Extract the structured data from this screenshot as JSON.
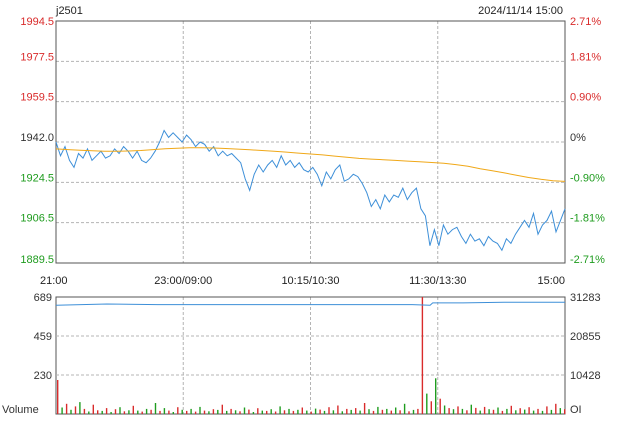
{
  "header": {
    "symbol": "j2501",
    "datetime": "2024/11/14 15:00"
  },
  "colors": {
    "up": "#d92b2b",
    "down": "#1f9c1f",
    "neutral": "#333333",
    "price_line": "#3d8fd8",
    "avg_line": "#f0a818",
    "oi_line": "#3d8fd8",
    "grid": "#b4b4b4",
    "frame": "#555555"
  },
  "chart_data": [
    {
      "type": "line",
      "ref_price": 1942.0,
      "ylim": [
        1889.5,
        1994.5
      ],
      "price_ticks": [
        {
          "label": "1994.5",
          "pct": "2.71%",
          "dir": "up"
        },
        {
          "label": "1977.5",
          "pct": "1.81%",
          "dir": "up"
        },
        {
          "label": "1959.5",
          "pct": "0.90%",
          "dir": "up"
        },
        {
          "label": "1942.0",
          "pct": "0%",
          "dir": "flat"
        },
        {
          "label": "1924.5",
          "pct": "-0.90%",
          "dir": "down"
        },
        {
          "label": "1906.5",
          "pct": "-1.81%",
          "dir": "down"
        },
        {
          "label": "1889.5",
          "pct": "-2.71%",
          "dir": "down"
        }
      ],
      "time_labels": [
        "21:00",
        "23:00/09:00",
        "10:15/10:30",
        "11:30/13:30",
        "15:00"
      ],
      "series": [
        {
          "key": "price",
          "values": [
            1942,
            1936,
            1940,
            1934,
            1931,
            1937,
            1935,
            1939,
            1934,
            1936,
            1938,
            1935,
            1936,
            1939,
            1937,
            1940,
            1938,
            1935,
            1938,
            1934,
            1933,
            1935,
            1938,
            1942,
            1947,
            1944,
            1946,
            1944,
            1942,
            1945,
            1943,
            1940,
            1942,
            1941,
            1938,
            1940,
            1936,
            1938,
            1936,
            1937,
            1935,
            1933,
            1926,
            1921,
            1928,
            1932,
            1929,
            1932,
            1934,
            1931,
            1936,
            1932,
            1934,
            1931,
            1933,
            1930,
            1929,
            1931,
            1928,
            1923,
            1929,
            1926,
            1930,
            1932,
            1925,
            1926,
            1928,
            1927,
            1924,
            1920,
            1914,
            1917,
            1913,
            1919,
            1916,
            1919,
            1918,
            1922,
            1917,
            1920,
            1922,
            1913,
            1910,
            1897,
            1904,
            1897,
            1906,
            1902,
            1904,
            1905,
            1901,
            1898,
            1902,
            1899,
            1900,
            1897,
            1901,
            1899,
            1898,
            1895,
            1900,
            1898,
            1902,
            1905,
            1908,
            1905,
            1911,
            1902,
            1906,
            1908,
            1912,
            1903,
            1908,
            1913
          ]
        },
        {
          "key": "avg",
          "values": [
            1939,
            1938.7,
            1938.4,
            1938.2,
            1938,
            1938,
            1938.1,
            1938.3,
            1938.7,
            1939.1,
            1939.3,
            1939.5,
            1939.5,
            1939.4,
            1939.2,
            1938.9,
            1938.6,
            1938.3,
            1938,
            1937.6,
            1937.2,
            1936.8,
            1936.4,
            1935.9,
            1935.4,
            1934.9,
            1934.6,
            1934.3,
            1934,
            1933.7,
            1933.4,
            1933.1,
            1932.8,
            1932.2,
            1931.5,
            1930.4,
            1929.5,
            1928.6,
            1927.6,
            1926.6,
            1925.8,
            1925.2,
            1924.9
          ]
        }
      ]
    },
    {
      "type": "bar",
      "ylabel": "Volume",
      "y2label": "OI",
      "volume_ticks": [
        "689",
        "459",
        "230"
      ],
      "oi_ticks": [
        "31283",
        "20855",
        "10428"
      ],
      "volume_max": 689,
      "bars": [
        {
          "v": 200,
          "c": "up"
        },
        {
          "v": 38,
          "c": "down"
        },
        {
          "v": 60,
          "c": "up"
        },
        {
          "v": 25,
          "c": "down"
        },
        {
          "v": 45,
          "c": "up"
        },
        {
          "v": 70,
          "c": "down"
        },
        {
          "v": 30,
          "c": "up"
        },
        {
          "v": 15,
          "c": "down"
        },
        {
          "v": 55,
          "c": "up"
        },
        {
          "v": 22,
          "c": "up"
        },
        {
          "v": 18,
          "c": "down"
        },
        {
          "v": 35,
          "c": "up"
        },
        {
          "v": 12,
          "c": "down"
        },
        {
          "v": 28,
          "c": "up"
        },
        {
          "v": 40,
          "c": "down"
        },
        {
          "v": 16,
          "c": "up"
        },
        {
          "v": 22,
          "c": "down"
        },
        {
          "v": 48,
          "c": "up"
        },
        {
          "v": 20,
          "c": "down"
        },
        {
          "v": 14,
          "c": "up"
        },
        {
          "v": 30,
          "c": "down"
        },
        {
          "v": 25,
          "c": "up"
        },
        {
          "v": 65,
          "c": "down"
        },
        {
          "v": 18,
          "c": "up"
        },
        {
          "v": 35,
          "c": "down"
        },
        {
          "v": 20,
          "c": "up"
        },
        {
          "v": 12,
          "c": "down"
        },
        {
          "v": 40,
          "c": "up"
        },
        {
          "v": 25,
          "c": "down"
        },
        {
          "v": 18,
          "c": "up"
        },
        {
          "v": 30,
          "c": "down"
        },
        {
          "v": 14,
          "c": "up"
        },
        {
          "v": 42,
          "c": "down"
        },
        {
          "v": 20,
          "c": "up"
        },
        {
          "v": 16,
          "c": "down"
        },
        {
          "v": 28,
          "c": "up"
        },
        {
          "v": 24,
          "c": "down"
        },
        {
          "v": 55,
          "c": "up"
        },
        {
          "v": 18,
          "c": "down"
        },
        {
          "v": 30,
          "c": "up"
        },
        {
          "v": 22,
          "c": "down"
        },
        {
          "v": 16,
          "c": "up"
        },
        {
          "v": 38,
          "c": "down"
        },
        {
          "v": 26,
          "c": "up"
        },
        {
          "v": 12,
          "c": "down"
        },
        {
          "v": 34,
          "c": "up"
        },
        {
          "v": 20,
          "c": "down"
        },
        {
          "v": 18,
          "c": "up"
        },
        {
          "v": 28,
          "c": "down"
        },
        {
          "v": 15,
          "c": "up"
        },
        {
          "v": 45,
          "c": "down"
        },
        {
          "v": 22,
          "c": "up"
        },
        {
          "v": 30,
          "c": "down"
        },
        {
          "v": 18,
          "c": "up"
        },
        {
          "v": 25,
          "c": "down"
        },
        {
          "v": 38,
          "c": "up"
        },
        {
          "v": 20,
          "c": "down"
        },
        {
          "v": 14,
          "c": "up"
        },
        {
          "v": 32,
          "c": "down"
        },
        {
          "v": 26,
          "c": "up"
        },
        {
          "v": 18,
          "c": "down"
        },
        {
          "v": 40,
          "c": "up"
        },
        {
          "v": 22,
          "c": "down"
        },
        {
          "v": 50,
          "c": "up"
        },
        {
          "v": 16,
          "c": "down"
        },
        {
          "v": 30,
          "c": "up"
        },
        {
          "v": 24,
          "c": "down"
        },
        {
          "v": 35,
          "c": "up"
        },
        {
          "v": 20,
          "c": "down"
        },
        {
          "v": 65,
          "c": "up"
        },
        {
          "v": 28,
          "c": "down"
        },
        {
          "v": 18,
          "c": "up"
        },
        {
          "v": 42,
          "c": "down"
        },
        {
          "v": 25,
          "c": "up"
        },
        {
          "v": 30,
          "c": "down"
        },
        {
          "v": 20,
          "c": "up"
        },
        {
          "v": 38,
          "c": "down"
        },
        {
          "v": 22,
          "c": "up"
        },
        {
          "v": 60,
          "c": "down"
        },
        {
          "v": 16,
          "c": "up"
        },
        {
          "v": 24,
          "c": "down"
        },
        {
          "v": 30,
          "c": "up"
        },
        {
          "v": 689,
          "c": "up"
        },
        {
          "v": 120,
          "c": "down"
        },
        {
          "v": 75,
          "c": "up"
        },
        {
          "v": 210,
          "c": "down"
        },
        {
          "v": 90,
          "c": "up"
        },
        {
          "v": 50,
          "c": "down"
        },
        {
          "v": 35,
          "c": "up"
        },
        {
          "v": 28,
          "c": "down"
        },
        {
          "v": 45,
          "c": "up"
        },
        {
          "v": 30,
          "c": "down"
        },
        {
          "v": 22,
          "c": "up"
        },
        {
          "v": 55,
          "c": "down"
        },
        {
          "v": 36,
          "c": "up"
        },
        {
          "v": 20,
          "c": "down"
        },
        {
          "v": 42,
          "c": "up"
        },
        {
          "v": 28,
          "c": "down"
        },
        {
          "v": 25,
          "c": "up"
        },
        {
          "v": 38,
          "c": "down"
        },
        {
          "v": 18,
          "c": "up"
        },
        {
          "v": 30,
          "c": "down"
        },
        {
          "v": 48,
          "c": "up"
        },
        {
          "v": 22,
          "c": "down"
        },
        {
          "v": 34,
          "c": "up"
        },
        {
          "v": 26,
          "c": "down"
        },
        {
          "v": 40,
          "c": "up"
        },
        {
          "v": 20,
          "c": "down"
        },
        {
          "v": 30,
          "c": "up"
        },
        {
          "v": 18,
          "c": "down"
        },
        {
          "v": 45,
          "c": "up"
        },
        {
          "v": 24,
          "c": "down"
        },
        {
          "v": 60,
          "c": "up"
        },
        {
          "v": 35,
          "c": "down"
        },
        {
          "v": 28,
          "c": "up"
        }
      ],
      "oi_line": [
        {
          "x": 0,
          "y": 0.93
        },
        {
          "x": 0.05,
          "y": 0.935
        },
        {
          "x": 0.1,
          "y": 0.94
        },
        {
          "x": 0.2,
          "y": 0.935
        },
        {
          "x": 0.3,
          "y": 0.935
        },
        {
          "x": 0.4,
          "y": 0.935
        },
        {
          "x": 0.5,
          "y": 0.935
        },
        {
          "x": 0.6,
          "y": 0.935
        },
        {
          "x": 0.7,
          "y": 0.935
        },
        {
          "x": 0.735,
          "y": 0.93
        },
        {
          "x": 0.74,
          "y": 0.95
        },
        {
          "x": 0.8,
          "y": 0.95
        },
        {
          "x": 0.88,
          "y": 0.955
        },
        {
          "x": 1,
          "y": 0.955
        }
      ]
    }
  ]
}
